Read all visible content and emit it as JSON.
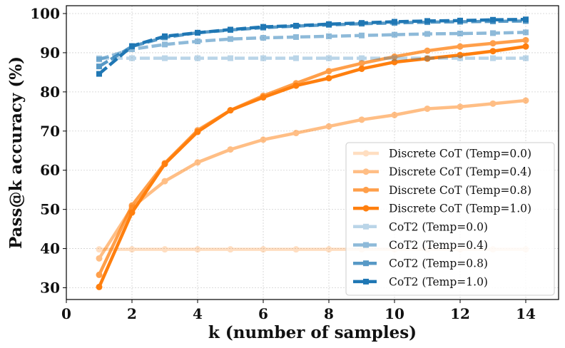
{
  "chart_data": {
    "type": "line",
    "xlabel": "k (number of samples)",
    "ylabel": "Pass@k accuracy (%)",
    "xlim": [
      0,
      15
    ],
    "ylim": [
      27,
      102
    ],
    "xticks": [
      0,
      2,
      4,
      6,
      8,
      10,
      12,
      14
    ],
    "yticks": [
      30,
      40,
      50,
      60,
      70,
      80,
      90,
      100
    ],
    "grid": true,
    "legend_position": "lower-right",
    "x": [
      1,
      2,
      3,
      4,
      5,
      6,
      7,
      8,
      9,
      10,
      11,
      12,
      13,
      14
    ],
    "series": [
      {
        "name": "Discrete CoT (Temp=0.0)",
        "color": "#ff7f0e",
        "opacity": 0.25,
        "dashed": false,
        "marker": "circle",
        "values": [
          39.8,
          39.8,
          39.8,
          39.8,
          39.8,
          39.8,
          39.8,
          39.8,
          39.8,
          39.8,
          39.8,
          39.8,
          39.8,
          39.8
        ]
      },
      {
        "name": "Discrete CoT (Temp=0.4)",
        "color": "#ff7f0e",
        "opacity": 0.5,
        "dashed": false,
        "marker": "circle",
        "values": [
          37.5,
          50.5,
          57.2,
          62.0,
          65.3,
          67.8,
          69.5,
          71.2,
          72.9,
          74.1,
          75.7,
          76.2,
          77.0,
          77.8
        ]
      },
      {
        "name": "Discrete CoT (Temp=0.8)",
        "color": "#ff7f0e",
        "opacity": 0.75,
        "dashed": false,
        "marker": "circle",
        "values": [
          33.3,
          51.0,
          61.8,
          70.2,
          75.3,
          79.0,
          82.2,
          85.3,
          87.3,
          89.0,
          90.5,
          91.6,
          92.4,
          93.2
        ]
      },
      {
        "name": "Discrete CoT (Temp=1.0)",
        "color": "#ff7f0e",
        "opacity": 1.0,
        "dashed": false,
        "marker": "circle",
        "values": [
          30.2,
          49.2,
          61.6,
          69.8,
          75.3,
          78.6,
          81.6,
          83.5,
          85.9,
          87.6,
          88.5,
          89.4,
          90.4,
          91.6
        ]
      },
      {
        "name": "CoT2 (Temp=0.0)",
        "color": "#1f77b4",
        "opacity": 0.3,
        "dashed": true,
        "marker": "square",
        "values": [
          88.6,
          88.6,
          88.6,
          88.6,
          88.6,
          88.6,
          88.6,
          88.6,
          88.6,
          88.6,
          88.6,
          88.6,
          88.6,
          88.6
        ]
      },
      {
        "name": "CoT2 (Temp=0.4)",
        "color": "#1f77b4",
        "opacity": 0.5,
        "dashed": true,
        "marker": "square",
        "values": [
          88.3,
          90.9,
          92.1,
          92.9,
          93.5,
          93.8,
          94.0,
          94.2,
          94.4,
          94.6,
          94.8,
          94.9,
          95.0,
          95.2
        ]
      },
      {
        "name": "CoT2 (Temp=0.8)",
        "color": "#1f77b4",
        "opacity": 0.75,
        "dashed": true,
        "marker": "square",
        "values": [
          86.5,
          91.6,
          93.9,
          95.1,
          95.8,
          96.4,
          96.8,
          97.1,
          97.4,
          97.6,
          97.8,
          97.9,
          98.0,
          98.1
        ]
      },
      {
        "name": "CoT2 (Temp=1.0)",
        "color": "#1f77b4",
        "opacity": 1.0,
        "dashed": true,
        "marker": "square",
        "values": [
          84.6,
          91.7,
          94.2,
          95.1,
          95.9,
          96.6,
          96.9,
          97.3,
          97.6,
          97.9,
          98.1,
          98.2,
          98.4,
          98.5
        ]
      }
    ]
  }
}
